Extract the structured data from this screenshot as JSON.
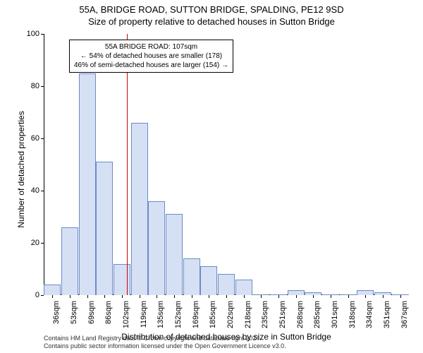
{
  "title": {
    "line1": "55A, BRIDGE ROAD, SUTTON BRIDGE, SPALDING, PE12 9SD",
    "line2": "Size of property relative to detached houses in Sutton Bridge",
    "fontsize": 13,
    "color": "#000000"
  },
  "chart": {
    "type": "histogram",
    "background_color": "#ffffff",
    "plot_border_color": "#000000",
    "bar_fill": "#d6e0f5",
    "bar_stroke": "#6b8bc4",
    "bar_stroke_width": 1,
    "ylim": [
      0,
      100
    ],
    "ytick_step": 20,
    "ylabel": "Number of detached properties",
    "xlabel": "Distribution of detached houses by size in Sutton Bridge",
    "label_fontsize": 12,
    "tick_fontsize": 11,
    "x_categories": [
      "36sqm",
      "53sqm",
      "69sqm",
      "86sqm",
      "102sqm",
      "119sqm",
      "135sqm",
      "152sqm",
      "169sqm",
      "185sqm",
      "202sqm",
      "218sqm",
      "235sqm",
      "251sqm",
      "268sqm",
      "285sqm",
      "301sqm",
      "318sqm",
      "334sqm",
      "351sqm",
      "367sqm"
    ],
    "values": [
      4,
      26,
      85,
      51,
      12,
      66,
      36,
      31,
      14,
      11,
      8,
      6,
      0,
      0,
      2,
      1,
      0,
      0,
      2,
      1,
      0
    ],
    "reference_line": {
      "x_index": 4.3,
      "color": "#cc0000",
      "width": 1
    },
    "annotation": {
      "line1": "55A BRIDGE ROAD: 107sqm",
      "line2": "← 54% of detached houses are smaller (178)",
      "line3": "46% of semi-detached houses are larger (154) →",
      "border_color": "#000000",
      "background": "#ffffff",
      "fontsize": 10
    }
  },
  "footer": {
    "line1": "Contains HM Land Registry data © Crown copyright and database right 2024.",
    "line2": "Contains public sector information licensed under the Open Government Licence v3.0.",
    "fontsize": 9,
    "color": "#333333"
  }
}
